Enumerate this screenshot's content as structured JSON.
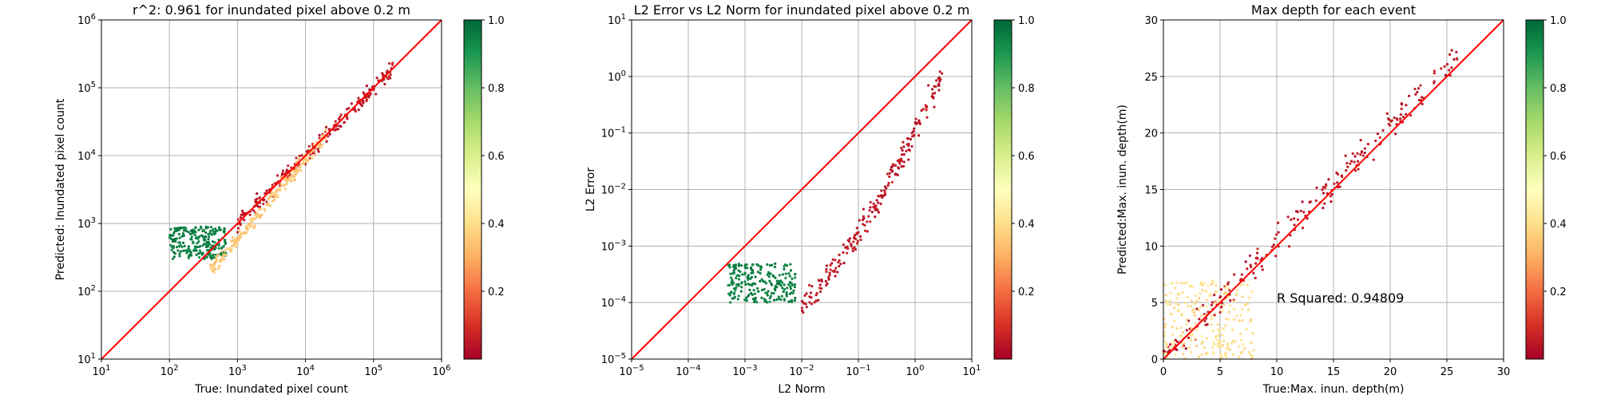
{
  "chart_data": [
    {
      "type": "scatter",
      "title": "r^2: 0.961 for inundated pixel above 0.2 m",
      "xlabel": "True: Inundated pixel count",
      "ylabel": "Predicted: Inundated pixel count",
      "xscale": "log",
      "yscale": "log",
      "xlim": [
        10,
        1000000
      ],
      "ylim": [
        10,
        1000000
      ],
      "xticks": [
        {
          "value": 10,
          "base": "10",
          "exp": "1"
        },
        {
          "value": 100,
          "base": "10",
          "exp": "2"
        },
        {
          "value": 1000,
          "base": "10",
          "exp": "3"
        },
        {
          "value": 10000,
          "base": "10",
          "exp": "4"
        },
        {
          "value": 100000,
          "base": "10",
          "exp": "5"
        },
        {
          "value": 1000000,
          "base": "10",
          "exp": "6"
        }
      ],
      "yticks": [
        {
          "value": 10,
          "base": "10",
          "exp": "1"
        },
        {
          "value": 100,
          "base": "10",
          "exp": "2"
        },
        {
          "value": 1000,
          "base": "10",
          "exp": "3"
        },
        {
          "value": 10000,
          "base": "10",
          "exp": "4"
        },
        {
          "value": 100000,
          "base": "10",
          "exp": "5"
        },
        {
          "value": 1000000,
          "base": "10",
          "exp": "6"
        }
      ],
      "grid": true,
      "reference_line": {
        "from": [
          10,
          10
        ],
        "to": [
          1000000,
          1000000
        ],
        "color": "#ff0000"
      },
      "colormap": "RdYlGn",
      "colorbar": {
        "range": [
          0,
          1
        ],
        "ticks": [
          "0.2",
          "0.4",
          "0.6",
          "0.8",
          "1.0"
        ]
      },
      "point_clusters": [
        {
          "x_range": [
            1000,
            200000
          ],
          "y_range": [
            1000,
            200000
          ],
          "color_value": 0.05,
          "spread": "along diagonal"
        },
        {
          "x_range": [
            100,
            700
          ],
          "y_range": [
            300,
            900
          ],
          "color_value": 0.95,
          "spread": "horizontal band"
        },
        {
          "x_range": [
            400,
            20000
          ],
          "y_range": [
            200,
            20000
          ],
          "color_value": 0.35,
          "spread": "around diagonal"
        }
      ]
    },
    {
      "type": "scatter",
      "title": "L2 Error vs L2 Norm for inundated pixel above 0.2 m",
      "xlabel": "L2 Norm",
      "ylabel": "L2 Error",
      "xscale": "log",
      "yscale": "log",
      "xlim": [
        1e-05,
        10
      ],
      "ylim": [
        1e-05,
        10
      ],
      "xticks": [
        {
          "value": 1e-05,
          "base": "10",
          "exp": "−5"
        },
        {
          "value": 0.0001,
          "base": "10",
          "exp": "−4"
        },
        {
          "value": 0.001,
          "base": "10",
          "exp": "−3"
        },
        {
          "value": 0.01,
          "base": "10",
          "exp": "−2"
        },
        {
          "value": 0.1,
          "base": "10",
          "exp": "−1"
        },
        {
          "value": 1,
          "base": "10",
          "exp": "0"
        },
        {
          "value": 10,
          "base": "10",
          "exp": "1"
        }
      ],
      "yticks": [
        {
          "value": 1e-05,
          "base": "10",
          "exp": "−5"
        },
        {
          "value": 0.0001,
          "base": "10",
          "exp": "−4"
        },
        {
          "value": 0.001,
          "base": "10",
          "exp": "−3"
        },
        {
          "value": 0.01,
          "base": "10",
          "exp": "−2"
        },
        {
          "value": 0.1,
          "base": "10",
          "exp": "−1"
        },
        {
          "value": 1,
          "base": "10",
          "exp": "0"
        },
        {
          "value": 10,
          "base": "10",
          "exp": "1"
        }
      ],
      "grid": true,
      "reference_line": {
        "from": [
          1e-05,
          1e-05
        ],
        "to": [
          10,
          10
        ],
        "color": "#ff0000"
      },
      "colormap": "RdYlGn",
      "colorbar": {
        "range": [
          0,
          1
        ],
        "ticks": [
          "0.2",
          "0.4",
          "0.6",
          "0.8",
          "1.0"
        ]
      },
      "point_clusters": [
        {
          "x_range": [
            0.0005,
            0.008
          ],
          "y_range": [
            0.0001,
            0.0005
          ],
          "color_value": 0.95,
          "spread": "horizontal band"
        },
        {
          "x_range": [
            0.01,
            3
          ],
          "y_range": [
            0.0001,
            1
          ],
          "color_value": 0.05,
          "spread": "rising curve"
        }
      ]
    },
    {
      "type": "scatter",
      "title": "Max depth for each event",
      "xlabel": "True:Max. inun. depth(m)",
      "ylabel": "Predicted:Max. inun. depth(m)",
      "xscale": "linear",
      "yscale": "linear",
      "xlim": [
        0,
        30
      ],
      "ylim": [
        0,
        30
      ],
      "xticks": [
        {
          "value": 0,
          "label": "0"
        },
        {
          "value": 5,
          "label": "5"
        },
        {
          "value": 10,
          "label": "10"
        },
        {
          "value": 15,
          "label": "15"
        },
        {
          "value": 20,
          "label": "20"
        },
        {
          "value": 25,
          "label": "25"
        },
        {
          "value": 30,
          "label": "30"
        }
      ],
      "yticks": [
        {
          "value": 0,
          "label": "0"
        },
        {
          "value": 5,
          "label": "5"
        },
        {
          "value": 10,
          "label": "10"
        },
        {
          "value": 15,
          "label": "15"
        },
        {
          "value": 20,
          "label": "20"
        },
        {
          "value": 25,
          "label": "25"
        },
        {
          "value": 30,
          "label": "30"
        }
      ],
      "grid": true,
      "reference_line": {
        "from": [
          0,
          0
        ],
        "to": [
          30,
          30
        ],
        "color": "#ff0000"
      },
      "annotation": {
        "text": "R Squared: 0.94809",
        "x": 10,
        "y": 5
      },
      "colormap": "RdYlGn",
      "colorbar": {
        "range": [
          0,
          1
        ],
        "ticks": [
          "0.2",
          "0.4",
          "0.6",
          "0.8",
          "1.0"
        ]
      },
      "point_clusters": [
        {
          "x_range": [
            0,
            26
          ],
          "y_range": [
            0,
            27
          ],
          "color_value": 0.05,
          "spread": "along diagonal"
        },
        {
          "x_range": [
            0,
            8
          ],
          "y_range": [
            0,
            7
          ],
          "color_value": 0.4,
          "spread": "near origin"
        }
      ]
    }
  ]
}
